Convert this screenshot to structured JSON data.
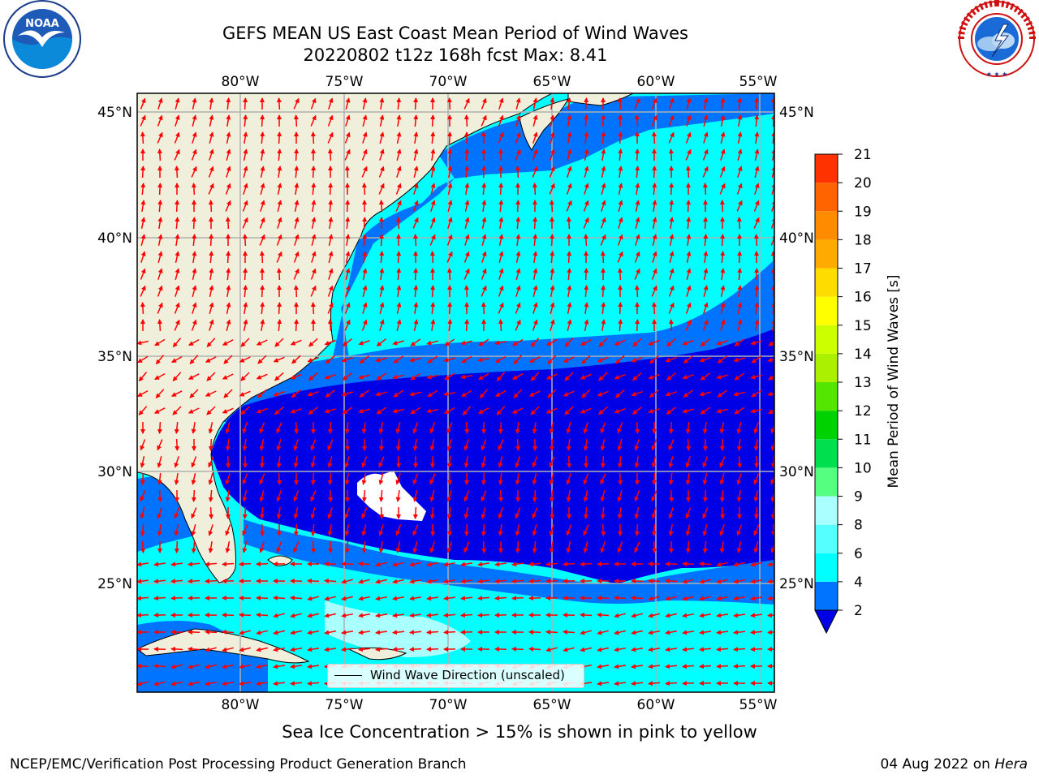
{
  "header": {
    "title_line1": "GEFS MEAN US East Coast Mean Period of Wind Waves",
    "title_line2": "20220802 t12z 168h fcst   Max: 8.41"
  },
  "logos": {
    "left": {
      "icon": "noaa-logo",
      "text": "NOAA",
      "ring_text": "NATIONAL OCEANIC AND ATMOSPHERIC ADMINISTRATION · U.S. DEPARTMENT OF COMMERCE"
    },
    "right": {
      "icon": "nws-logo",
      "ring_text": "NATIONAL WEATHER SERVICE"
    }
  },
  "map": {
    "lon_ticks": [
      "80°W",
      "75°W",
      "70°W",
      "65°W",
      "60°W",
      "55°W"
    ],
    "lat_ticks": [
      "45°N",
      "40°N",
      "35°N",
      "30°N",
      "25°N"
    ],
    "legend_label": "Wind Wave Direction (unscaled)",
    "colors": {
      "land": "#efefdc",
      "ocean_low": "#0000e6",
      "period_2_4": "#0073ff",
      "period_4_6": "#00ffff",
      "period_6_8": "#55ffff",
      "period_8_9": "#aaffff",
      "arrow": "#ff0000",
      "grid": "#b0b0b0"
    }
  },
  "colorbar": {
    "label": "Mean Period of Wind Waves [s]",
    "ticks": [
      "2",
      "4",
      "6",
      "8",
      "9",
      "10",
      "11",
      "12",
      "13",
      "14",
      "15",
      "16",
      "17",
      "18",
      "19",
      "20",
      "21"
    ],
    "colors": [
      "#0073ff",
      "#00ffff",
      "#55ffff",
      "#aaffff",
      "#55ff80",
      "#00e04e",
      "#00d200",
      "#55e600",
      "#aaf000",
      "#ccff00",
      "#ffff00",
      "#ffdc00",
      "#ffaa00",
      "#ff8c00",
      "#ff6400",
      "#ff3200",
      "#ff0000"
    ],
    "under_color": "#0000e6"
  },
  "note": "Sea Ice Concentration > 15% is shown in pink to yellow",
  "footer": {
    "left": "NCEP/EMC/Verification Post Processing Product Generation Branch",
    "date": "04 Aug 2022 on ",
    "machine": "Hera"
  }
}
